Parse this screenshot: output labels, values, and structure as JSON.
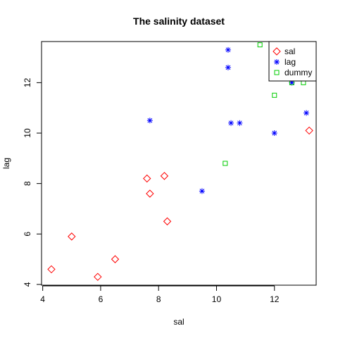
{
  "chart_data": {
    "type": "scatter",
    "title": "The salinity dataset",
    "xlabel": "sal",
    "ylabel": "lag",
    "xlim": [
      3.96,
      13.44
    ],
    "ylim": [
      3.97,
      13.63
    ],
    "x_ticks": [
      4,
      6,
      8,
      10,
      12
    ],
    "y_ticks": [
      4,
      6,
      8,
      10,
      12
    ],
    "grid": false,
    "legend_position": "top-right",
    "series": [
      {
        "name": "sal",
        "marker": "diamond",
        "color": "#ff0000",
        "points": [
          [
            4.3,
            4.6
          ],
          [
            5.0,
            5.9
          ],
          [
            5.9,
            4.3
          ],
          [
            6.5,
            5.0
          ],
          [
            7.6,
            8.2
          ],
          [
            7.7,
            7.6
          ],
          [
            8.2,
            8.3
          ],
          [
            8.3,
            6.5
          ],
          [
            13.2,
            10.1
          ]
        ]
      },
      {
        "name": "lag",
        "marker": "asterisk",
        "color": "#0000ff",
        "points": [
          [
            7.7,
            10.5
          ],
          [
            9.5,
            7.7
          ],
          [
            10.4,
            13.3
          ],
          [
            10.4,
            12.6
          ],
          [
            10.5,
            10.4
          ],
          [
            10.8,
            10.4
          ],
          [
            12.0,
            10.0
          ],
          [
            12.6,
            12.0
          ],
          [
            13.1,
            10.8
          ]
        ]
      },
      {
        "name": "dummy",
        "marker": "square",
        "color": "#00cc00",
        "points": [
          [
            10.3,
            8.8
          ],
          [
            11.5,
            13.5
          ],
          [
            12.0,
            11.5
          ],
          [
            12.6,
            12.0
          ],
          [
            13.0,
            12.0
          ]
        ]
      }
    ]
  }
}
